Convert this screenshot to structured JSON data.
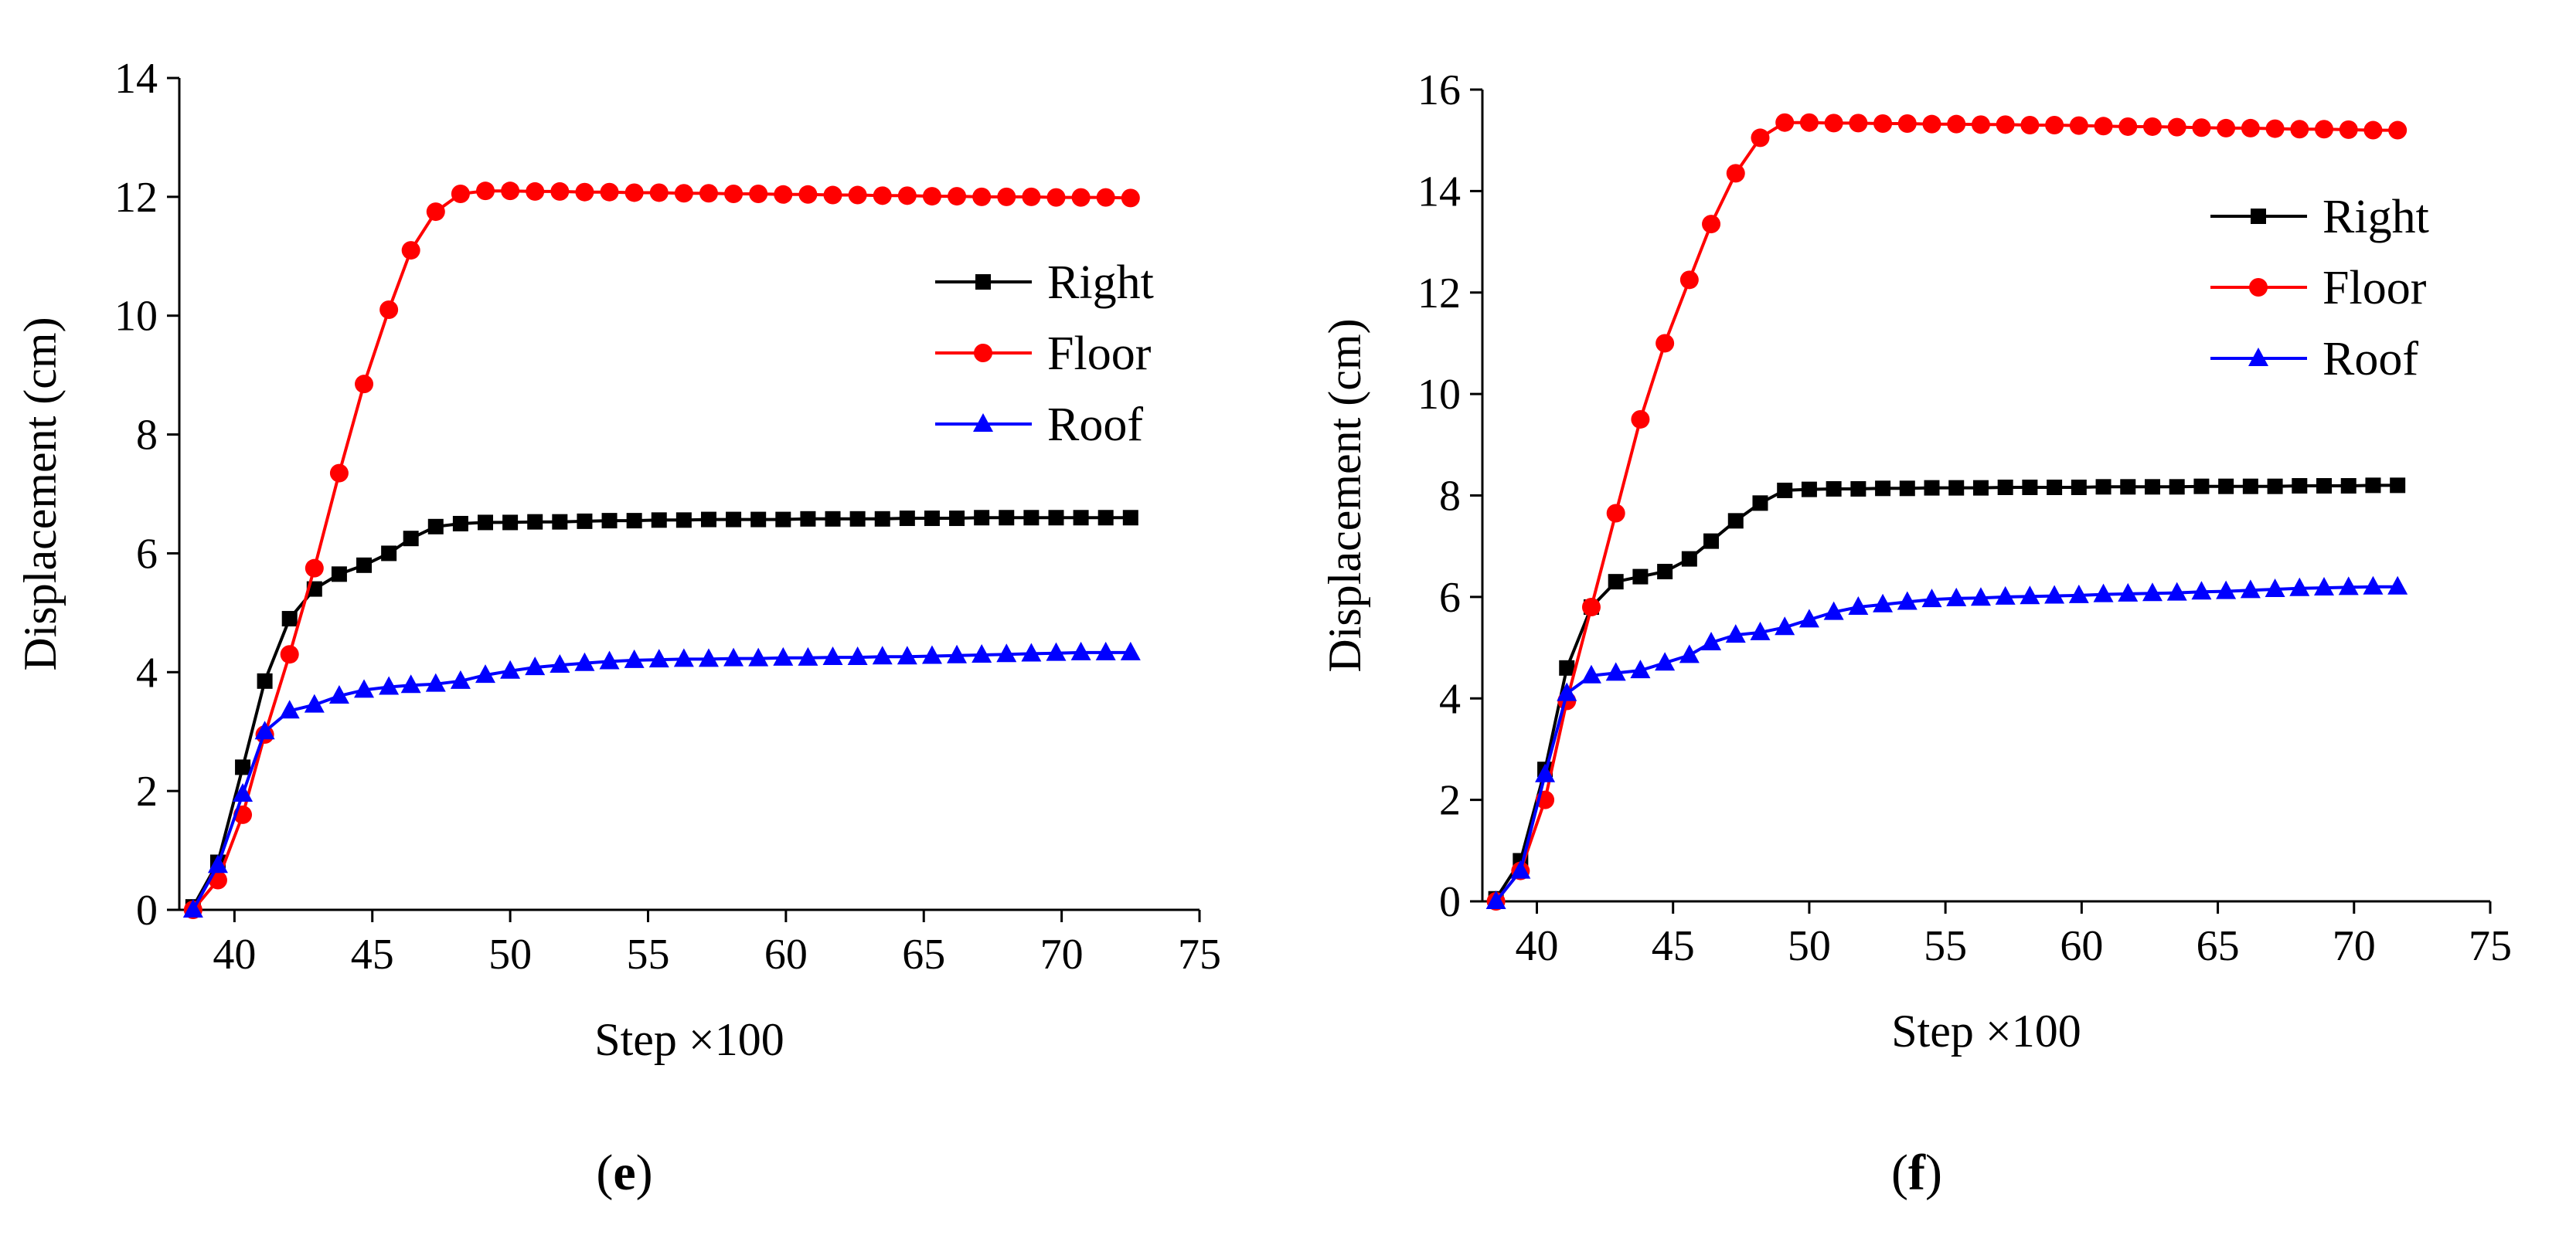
{
  "chart_data": [
    {
      "type": "line",
      "panel_label": "e",
      "xlabel": "Step ×100",
      "ylabel": "Displacement (cm)",
      "xlim": [
        38,
        75
      ],
      "ylim": [
        0,
        14
      ],
      "xticks": [
        40,
        45,
        50,
        55,
        60,
        65,
        70,
        75
      ],
      "yticks": [
        0,
        2,
        4,
        6,
        8,
        10,
        12,
        14
      ],
      "grid": false,
      "legend_position": "upper-right",
      "series": [
        {
          "name": "Right",
          "color": "#000000",
          "marker": "square",
          "x": [
            38.5,
            39.4,
            40.3,
            41.1,
            42.0,
            42.9,
            43.8,
            44.7,
            45.6,
            46.4,
            47.3,
            48.2,
            49.1,
            50.0,
            50.9,
            51.8,
            52.7,
            53.6,
            54.5,
            55.4,
            56.3,
            57.2,
            58.1,
            59.0,
            59.9,
            60.8,
            61.7,
            62.6,
            63.5,
            64.4,
            65.3,
            66.2,
            67.1,
            68.0,
            68.9,
            69.8,
            70.7,
            71.6,
            72.5
          ],
          "y": [
            0.05,
            0.8,
            2.4,
            3.85,
            4.9,
            5.4,
            5.65,
            5.8,
            6.0,
            6.25,
            6.45,
            6.5,
            6.52,
            6.52,
            6.53,
            6.53,
            6.54,
            6.55,
            6.55,
            6.56,
            6.56,
            6.57,
            6.57,
            6.57,
            6.57,
            6.58,
            6.58,
            6.58,
            6.58,
            6.59,
            6.59,
            6.59,
            6.6,
            6.6,
            6.6,
            6.6,
            6.6,
            6.6,
            6.6
          ]
        },
        {
          "name": "Floor",
          "color": "#ff0000",
          "marker": "circle",
          "x": [
            38.5,
            39.4,
            40.3,
            41.1,
            42.0,
            42.9,
            43.8,
            44.7,
            45.6,
            46.4,
            47.3,
            48.2,
            49.1,
            50.0,
            50.9,
            51.8,
            52.7,
            53.6,
            54.5,
            55.4,
            56.3,
            57.2,
            58.1,
            59.0,
            59.9,
            60.8,
            61.7,
            62.6,
            63.5,
            64.4,
            65.3,
            66.2,
            67.1,
            68.0,
            68.9,
            69.8,
            70.7,
            71.6,
            72.5
          ],
          "y": [
            0.0,
            0.5,
            1.6,
            2.95,
            4.3,
            5.75,
            7.35,
            8.85,
            10.1,
            11.1,
            11.75,
            12.05,
            12.1,
            12.1,
            12.09,
            12.09,
            12.08,
            12.08,
            12.07,
            12.07,
            12.06,
            12.06,
            12.05,
            12.05,
            12.04,
            12.04,
            12.03,
            12.03,
            12.02,
            12.02,
            12.01,
            12.01,
            12.0,
            12.0,
            12.0,
            11.99,
            11.99,
            11.99,
            11.98
          ]
        },
        {
          "name": "Roof",
          "color": "#0000ff",
          "marker": "triangle",
          "x": [
            38.5,
            39.4,
            40.3,
            41.1,
            42.0,
            42.9,
            43.8,
            44.7,
            45.6,
            46.4,
            47.3,
            48.2,
            49.1,
            50.0,
            50.9,
            51.8,
            52.7,
            53.6,
            54.5,
            55.4,
            56.3,
            57.2,
            58.1,
            59.0,
            59.9,
            60.8,
            61.7,
            62.6,
            63.5,
            64.4,
            65.3,
            66.2,
            67.1,
            68.0,
            68.9,
            69.8,
            70.7,
            71.6,
            72.5
          ],
          "y": [
            0.0,
            0.75,
            1.95,
            3.0,
            3.35,
            3.45,
            3.6,
            3.7,
            3.75,
            3.78,
            3.8,
            3.85,
            3.95,
            4.02,
            4.08,
            4.12,
            4.15,
            4.18,
            4.2,
            4.21,
            4.22,
            4.22,
            4.23,
            4.23,
            4.24,
            4.24,
            4.25,
            4.25,
            4.26,
            4.26,
            4.27,
            4.28,
            4.29,
            4.3,
            4.31,
            4.32,
            4.33,
            4.33,
            4.33
          ]
        }
      ]
    },
    {
      "type": "line",
      "panel_label": "f",
      "xlabel": "Step ×100",
      "ylabel": "Displacement (cm)",
      "xlim": [
        38,
        75
      ],
      "ylim": [
        0,
        16
      ],
      "xticks": [
        40,
        45,
        50,
        55,
        60,
        65,
        70,
        75
      ],
      "yticks": [
        0,
        2,
        4,
        6,
        8,
        10,
        12,
        14,
        16
      ],
      "grid": false,
      "legend_position": "upper-right",
      "series": [
        {
          "name": "Right",
          "color": "#000000",
          "marker": "square",
          "x": [
            38.5,
            39.4,
            40.3,
            41.1,
            42.0,
            42.9,
            43.8,
            44.7,
            45.6,
            46.4,
            47.3,
            48.2,
            49.1,
            50.0,
            50.9,
            51.8,
            52.7,
            53.6,
            54.5,
            55.4,
            56.3,
            57.2,
            58.1,
            59.0,
            59.9,
            60.8,
            61.7,
            62.6,
            63.5,
            64.4,
            65.3,
            66.2,
            67.1,
            68.0,
            68.9,
            69.8,
            70.7,
            71.6
          ],
          "y": [
            0.05,
            0.8,
            2.6,
            4.6,
            5.8,
            6.3,
            6.4,
            6.5,
            6.75,
            7.1,
            7.5,
            7.85,
            8.1,
            8.12,
            8.13,
            8.13,
            8.14,
            8.14,
            8.15,
            8.15,
            8.15,
            8.16,
            8.16,
            8.16,
            8.16,
            8.17,
            8.17,
            8.17,
            8.17,
            8.18,
            8.18,
            8.18,
            8.18,
            8.19,
            8.19,
            8.19,
            8.2,
            8.2
          ]
        },
        {
          "name": "Floor",
          "color": "#ff0000",
          "marker": "circle",
          "x": [
            38.5,
            39.4,
            40.3,
            41.1,
            42.0,
            42.9,
            43.8,
            44.7,
            45.6,
            46.4,
            47.3,
            48.2,
            49.1,
            50.0,
            50.9,
            51.8,
            52.7,
            53.6,
            54.5,
            55.4,
            56.3,
            57.2,
            58.1,
            59.0,
            59.9,
            60.8,
            61.7,
            62.6,
            63.5,
            64.4,
            65.3,
            66.2,
            67.1,
            68.0,
            68.9,
            69.8,
            70.7,
            71.6
          ],
          "y": [
            0.0,
            0.6,
            2.0,
            3.95,
            5.8,
            7.65,
            9.5,
            11.0,
            12.25,
            13.35,
            14.35,
            15.05,
            15.35,
            15.35,
            15.34,
            15.34,
            15.33,
            15.33,
            15.32,
            15.32,
            15.31,
            15.31,
            15.3,
            15.3,
            15.29,
            15.28,
            15.27,
            15.27,
            15.26,
            15.25,
            15.24,
            15.24,
            15.23,
            15.22,
            15.22,
            15.21,
            15.2,
            15.2
          ]
        },
        {
          "name": "Roof",
          "color": "#0000ff",
          "marker": "triangle",
          "x": [
            38.5,
            39.4,
            40.3,
            41.1,
            42.0,
            42.9,
            43.8,
            44.7,
            45.6,
            46.4,
            47.3,
            48.2,
            49.1,
            50.0,
            50.9,
            51.8,
            52.7,
            53.6,
            54.5,
            55.4,
            56.3,
            57.2,
            58.1,
            59.0,
            59.9,
            60.8,
            61.7,
            62.6,
            63.5,
            64.4,
            65.3,
            66.2,
            67.1,
            68.0,
            68.9,
            69.8,
            70.7,
            71.6
          ],
          "y": [
            0.0,
            0.6,
            2.5,
            4.1,
            4.45,
            4.5,
            4.55,
            4.7,
            4.85,
            5.1,
            5.25,
            5.3,
            5.4,
            5.55,
            5.7,
            5.8,
            5.85,
            5.9,
            5.95,
            5.97,
            5.98,
            6.0,
            6.01,
            6.02,
            6.03,
            6.05,
            6.06,
            6.07,
            6.08,
            6.1,
            6.11,
            6.13,
            6.15,
            6.17,
            6.18,
            6.19,
            6.2,
            6.2
          ]
        }
      ]
    }
  ]
}
